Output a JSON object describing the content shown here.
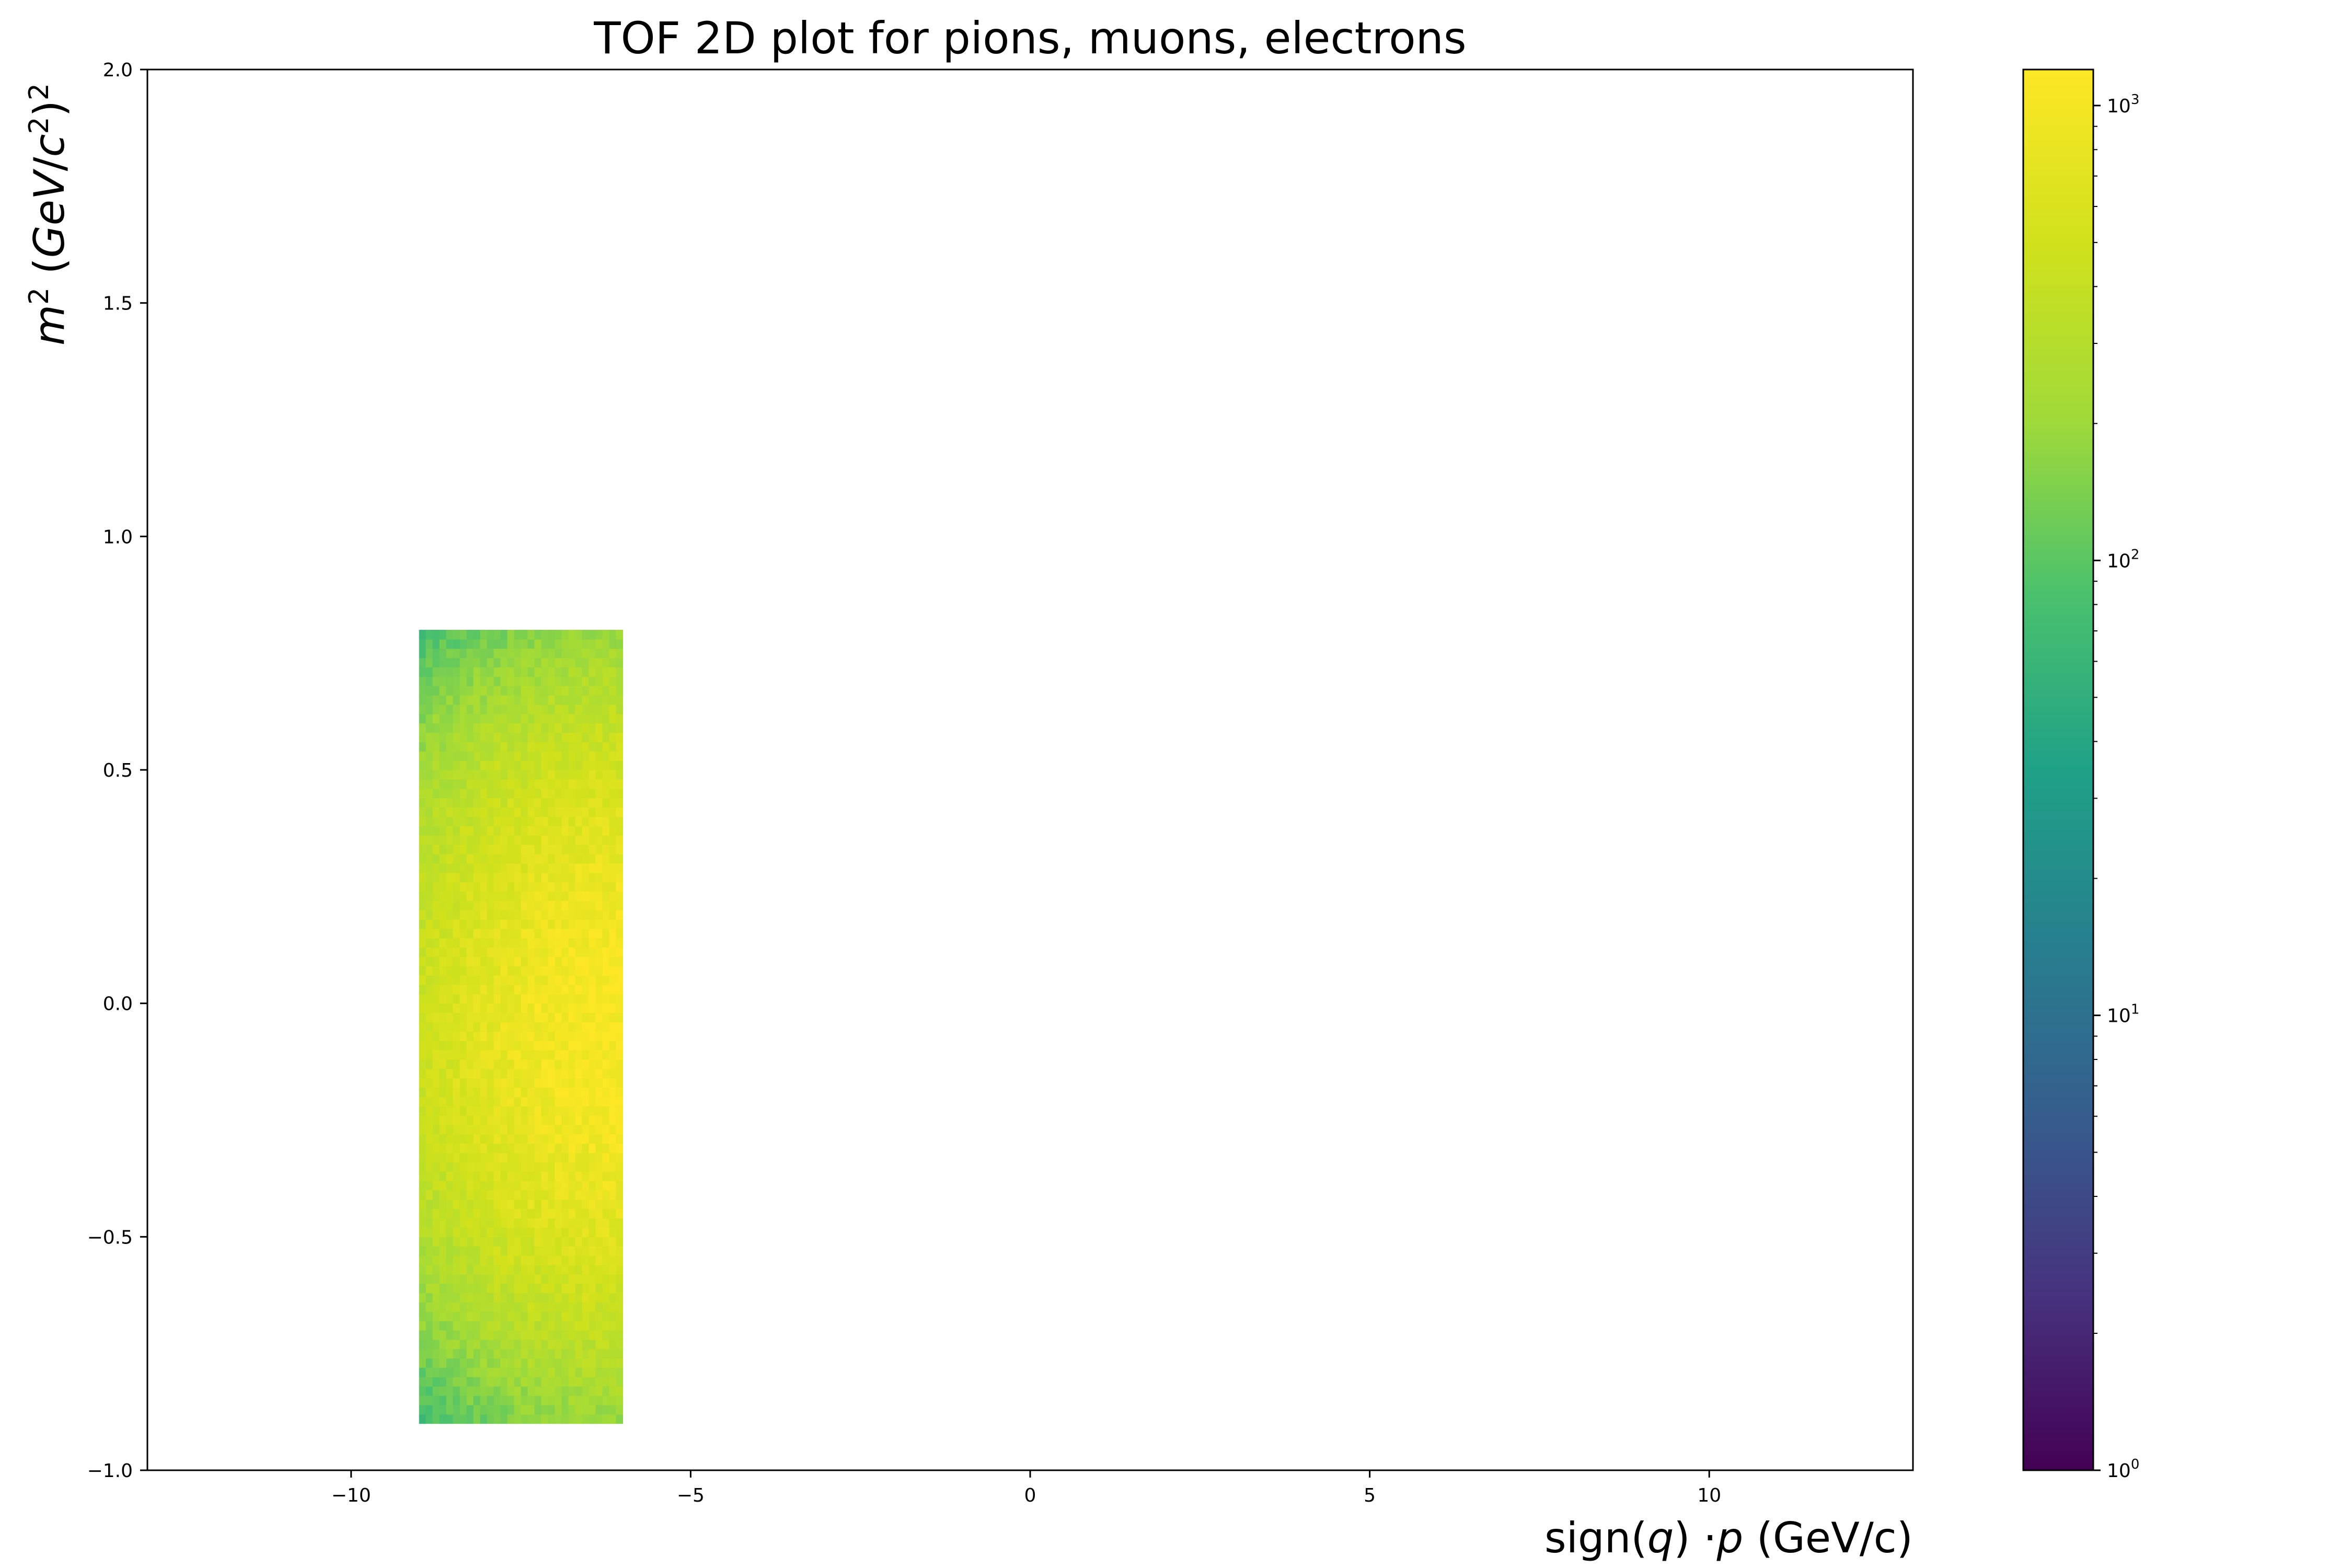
{
  "chart_data": {
    "type": "heatmap",
    "title": "TOF 2D plot for pions, muons, electrons",
    "xlabel_parts": [
      "sign(",
      "q",
      ") ·",
      "p",
      " (GeV/c)"
    ],
    "ylabel_parts": [
      "m",
      "2",
      " (",
      "GeV",
      "/",
      "c",
      "2",
      ")",
      "2"
    ],
    "xlim": [
      -13,
      13
    ],
    "ylim": [
      -1.0,
      2.0
    ],
    "x_ticks": [
      -10,
      -5,
      0,
      5,
      10
    ],
    "x_tick_labels": [
      "−10",
      "−5",
      "0",
      "5",
      "10"
    ],
    "y_ticks": [
      -1.0,
      -0.5,
      0.0,
      0.5,
      1.0,
      1.5,
      2.0
    ],
    "y_tick_labels": [
      "−1.0",
      "−0.5",
      "0.0",
      "0.5",
      "1.0",
      "1.5",
      "2.0"
    ],
    "colorbar": {
      "scale": "log",
      "colormap": "viridis",
      "range": [
        1,
        1200
      ],
      "ticks": [
        1,
        10,
        100,
        1000
      ],
      "tick_labels": [
        {
          "base": "10",
          "exp": "0"
        },
        {
          "base": "10",
          "exp": "1"
        },
        {
          "base": "10",
          "exp": "2"
        },
        {
          "base": "10",
          "exp": "3"
        }
      ]
    },
    "bins": {
      "x_range": [
        -9.0,
        -6.0
      ],
      "y_range": [
        -0.9,
        0.8
      ],
      "nx": 30,
      "ny": 85,
      "peak": {
        "x": -6.0,
        "y": -0.05,
        "count": 1100
      },
      "sigma_x": 2.2,
      "sigma_y": 0.45,
      "min_count": 1.5
    }
  }
}
